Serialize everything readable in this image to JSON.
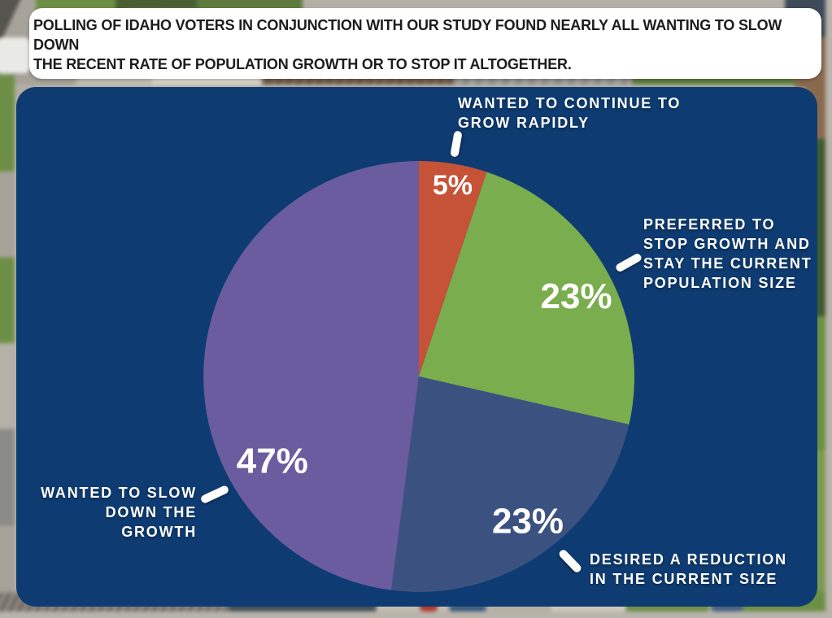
{
  "header": {
    "text": "POLLING OF IDAHO VOTERS IN CONJUNCTION WITH OUR STUDY FOUND NEARLY ALL WANTING TO SLOW DOWN\nTHE RECENT RATE OF POPULATION GROWTH OR TO STOP IT ALTOGETHER."
  },
  "chart_data": {
    "type": "pie",
    "direction": "clockwise",
    "start_angle_deg": 0,
    "values_unit": "%",
    "slices": [
      {
        "id": "continue-rapid-growth",
        "callout": "WANTED TO CONTINUE TO\nGROW RAPIDLY",
        "value": 5,
        "pct_label": "5%",
        "color": "#c65237",
        "label_angle_deg": 10,
        "label_radius_frac": 0.9
      },
      {
        "id": "stop-growth-stay-current",
        "callout": "PREFERRED TO\nSTOP GROWTH AND\nSTAY THE CURRENT\nPOPULATION SIZE",
        "value": 23,
        "pct_label": "23%",
        "color": "#7aad4d",
        "label_angle_deg": 63,
        "label_radius_frac": 0.82
      },
      {
        "id": "reduce-current-size",
        "callout": "DESIRED A REDUCTION\nIN THE CURRENT SIZE",
        "value": 23,
        "pct_label": "23%",
        "color": "#3b5281",
        "label_angle_deg": 143,
        "label_radius_frac": 0.84
      },
      {
        "id": "slow-down-growth",
        "callout": "WANTED TO SLOW\nDOWN THE GROWTH",
        "value": 47,
        "pct_label": "47%",
        "color": "#6a5c9e",
        "label_angle_deg": 240,
        "label_radius_frac": 0.785
      }
    ]
  },
  "colors": {
    "card_navy": "#0e3c72",
    "card_white": "#ffffff",
    "callout_text": "#ffffff",
    "header_text": "#1c1c1c"
  }
}
